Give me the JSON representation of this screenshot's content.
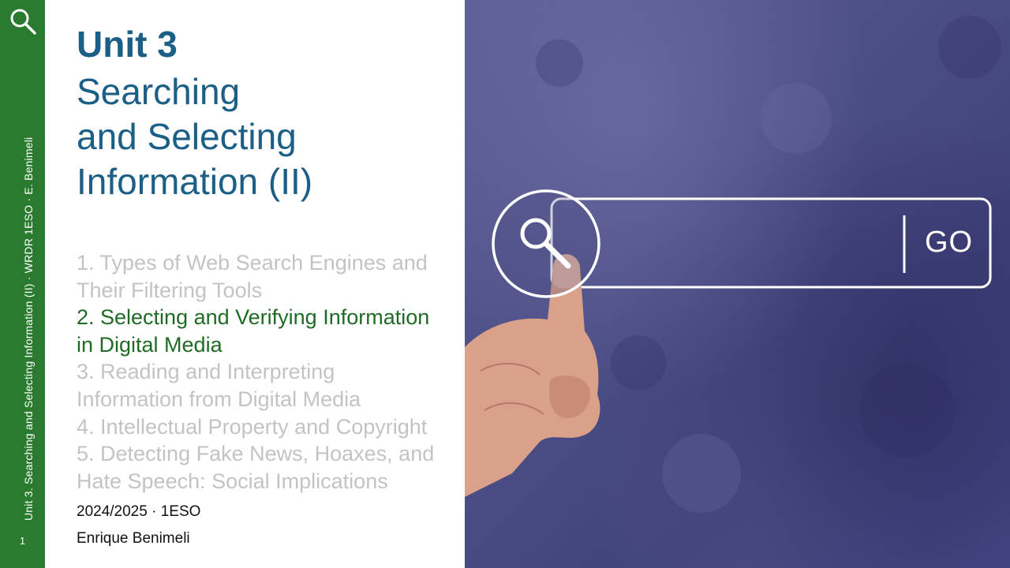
{
  "sidebar": {
    "vertical_text": "Unit 3. Searching and Selecting Information (II) · WRDR 1ESO · E. Benimeli",
    "page_number": "1",
    "icon": "search-icon"
  },
  "header": {
    "unit_label": "Unit 3",
    "title_lines": [
      "Searching",
      "and Selecting",
      "Information (II)"
    ]
  },
  "toc": {
    "items": [
      {
        "lines": [
          "1. Types of Web Search Engines and",
          "Their Filtering Tools"
        ],
        "active": false
      },
      {
        "lines": [
          "2. Selecting and Verifying Information",
          "in Digital Media"
        ],
        "active": true
      },
      {
        "lines": [
          "3. Reading and Interpreting",
          "Information from Digital Media"
        ],
        "active": false
      },
      {
        "lines": [
          "4. Intellectual Property and Copyright"
        ],
        "active": false
      },
      {
        "lines": [
          "5. Detecting Fake News, Hoaxes, and",
          "Hate Speech: Social Implications"
        ],
        "active": false
      }
    ]
  },
  "footer": {
    "year_course": "2024/2025 · 1ESO",
    "author": "Enrique Benimeli"
  },
  "photo": {
    "search_button_label": "GO",
    "colors": {
      "background": "#4c4e86",
      "sidebar": "#2a7a2f",
      "title": "#1b5e86",
      "active": "#1f6b26",
      "inactive": "#c3c3c3"
    }
  }
}
